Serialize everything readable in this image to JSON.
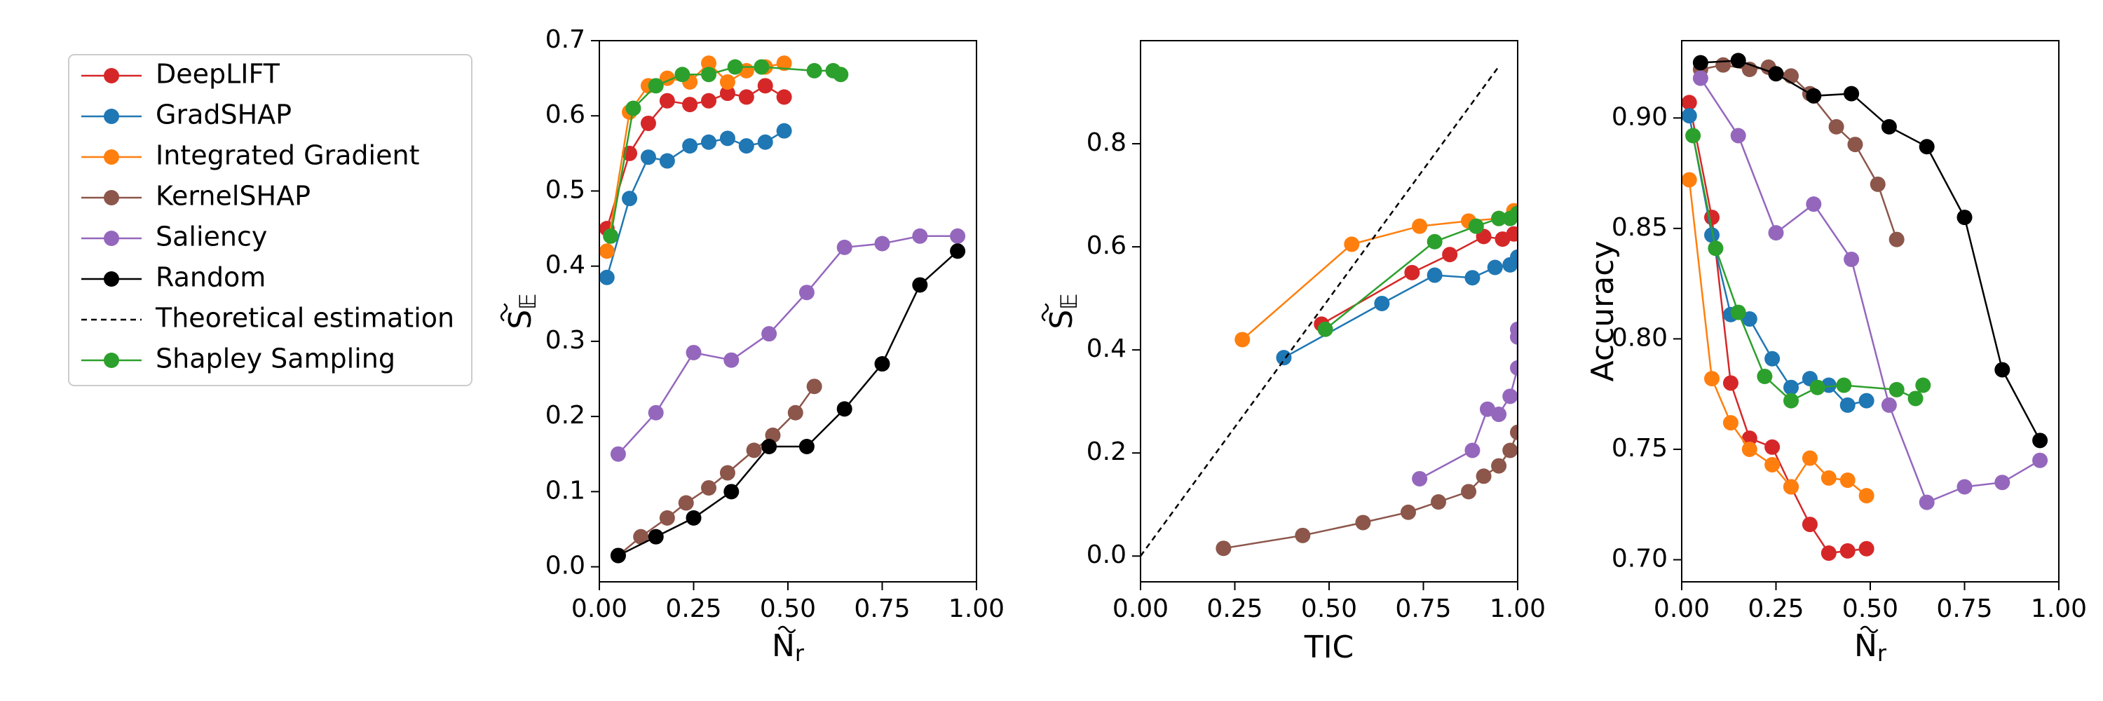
{
  "colors": {
    "DeepLIFT": "#d62728",
    "GradSHAP": "#1f77b4",
    "Integrated Gradient": "#ff7f0e",
    "KernelSHAP": "#8c564b",
    "Saliency": "#9467bd",
    "Random": "#000000",
    "Theoretical estimation": "#000000",
    "Shapley Sampling": "#2ca02c"
  },
  "legend": {
    "placement": "left-outside",
    "entries": [
      {
        "label": "DeepLIFT",
        "style": "line-marker"
      },
      {
        "label": "GradSHAP",
        "style": "line-marker"
      },
      {
        "label": "Integrated Gradient",
        "style": "line-marker"
      },
      {
        "label": "KernelSHAP",
        "style": "line-marker"
      },
      {
        "label": "Saliency",
        "style": "line-marker"
      },
      {
        "label": "Random",
        "style": "line-marker"
      },
      {
        "label": "Theoretical estimation",
        "style": "dashed"
      },
      {
        "label": "Shapley Sampling",
        "style": "line-marker"
      }
    ]
  },
  "chart_data": [
    {
      "type": "line",
      "id": "p1",
      "title": "",
      "xlabel_main": "N",
      "xlabel_sub": "r",
      "ylabel_main": "S",
      "ylabel_sub": "𝔼",
      "xlim": [
        0.0,
        1.0
      ],
      "ylim": [
        -0.02,
        0.7
      ],
      "xticks": [
        0.0,
        0.25,
        0.5,
        0.75,
        1.0
      ],
      "xtick_labels": [
        "0.00",
        "0.25",
        "0.50",
        "0.75",
        "1.00"
      ],
      "yticks": [
        0.0,
        0.1,
        0.2,
        0.3,
        0.4,
        0.5,
        0.6,
        0.7
      ],
      "ytick_labels": [
        "0.0",
        "0.1",
        "0.2",
        "0.3",
        "0.4",
        "0.5",
        "0.6",
        "0.7"
      ],
      "series": [
        {
          "name": "DeepLIFT",
          "x": [
            0.02,
            0.08,
            0.13,
            0.18,
            0.24,
            0.29,
            0.34,
            0.39,
            0.44,
            0.49
          ],
          "y": [
            0.45,
            0.55,
            0.59,
            0.62,
            0.615,
            0.62,
            0.63,
            0.625,
            0.64,
            0.625
          ]
        },
        {
          "name": "GradSHAP",
          "x": [
            0.02,
            0.08,
            0.13,
            0.18,
            0.24,
            0.29,
            0.34,
            0.39,
            0.44,
            0.49
          ],
          "y": [
            0.385,
            0.49,
            0.545,
            0.54,
            0.56,
            0.565,
            0.57,
            0.56,
            0.565,
            0.58
          ]
        },
        {
          "name": "Integrated Gradient",
          "x": [
            0.02,
            0.08,
            0.13,
            0.18,
            0.24,
            0.29,
            0.34,
            0.39,
            0.44,
            0.49
          ],
          "y": [
            0.42,
            0.605,
            0.64,
            0.65,
            0.645,
            0.67,
            0.645,
            0.66,
            0.665,
            0.67
          ]
        },
        {
          "name": "KernelSHAP",
          "x": [
            0.05,
            0.11,
            0.18,
            0.23,
            0.29,
            0.34,
            0.41,
            0.46,
            0.52,
            0.57
          ],
          "y": [
            0.015,
            0.04,
            0.065,
            0.085,
            0.105,
            0.125,
            0.155,
            0.175,
            0.205,
            0.24
          ]
        },
        {
          "name": "Saliency",
          "x": [
            0.05,
            0.15,
            0.25,
            0.35,
            0.45,
            0.55,
            0.65,
            0.75,
            0.85,
            0.95
          ],
          "y": [
            0.15,
            0.205,
            0.285,
            0.275,
            0.31,
            0.365,
            0.425,
            0.43,
            0.44,
            0.44
          ]
        },
        {
          "name": "Random",
          "x": [
            0.05,
            0.15,
            0.25,
            0.35,
            0.45,
            0.55,
            0.65,
            0.75,
            0.85,
            0.95
          ],
          "y": [
            0.015,
            0.04,
            0.065,
            0.1,
            0.16,
            0.16,
            0.21,
            0.27,
            0.375,
            0.42
          ]
        },
        {
          "name": "Shapley Sampling",
          "x": [
            0.03,
            0.09,
            0.15,
            0.22,
            0.29,
            0.36,
            0.43,
            0.57,
            0.62,
            0.64
          ],
          "y": [
            0.44,
            0.61,
            0.64,
            0.655,
            0.655,
            0.665,
            0.665,
            0.66,
            0.66,
            0.655
          ]
        }
      ]
    },
    {
      "type": "line",
      "id": "p2",
      "title": "",
      "xlabel": "TIC",
      "ylabel_main": "S",
      "ylabel_sub": "𝔼",
      "xlim": [
        0.0,
        1.0
      ],
      "ylim": [
        -0.05,
        1.0
      ],
      "xticks": [
        0.0,
        0.25,
        0.5,
        0.75,
        1.0
      ],
      "xtick_labels": [
        "0.00",
        "0.25",
        "0.50",
        "0.75",
        "1.00"
      ],
      "yticks": [
        0.0,
        0.2,
        0.4,
        0.6,
        0.8
      ],
      "ytick_labels": [
        "0.0",
        "0.2",
        "0.4",
        "0.6",
        "0.8"
      ],
      "series": [
        {
          "name": "DeepLIFT",
          "x": [
            0.48,
            0.72,
            0.82,
            0.91,
            0.96,
            0.99
          ],
          "y": [
            0.45,
            0.55,
            0.585,
            0.62,
            0.615,
            0.625
          ]
        },
        {
          "name": "GradSHAP",
          "x": [
            0.38,
            0.64,
            0.78,
            0.88,
            0.94,
            0.98,
            1.0
          ],
          "y": [
            0.385,
            0.49,
            0.545,
            0.54,
            0.56,
            0.565,
            0.58
          ]
        },
        {
          "name": "Integrated Gradient",
          "x": [
            0.27,
            0.56,
            0.74,
            0.87,
            0.95,
            0.99
          ],
          "y": [
            0.42,
            0.605,
            0.64,
            0.65,
            0.655,
            0.67
          ]
        },
        {
          "name": "KernelSHAP",
          "x": [
            0.22,
            0.43,
            0.59,
            0.71,
            0.79,
            0.87,
            0.91,
            0.95,
            0.98,
            1.0
          ],
          "y": [
            0.015,
            0.04,
            0.065,
            0.085,
            0.105,
            0.125,
            0.155,
            0.175,
            0.205,
            0.24
          ]
        },
        {
          "name": "Saliency",
          "x": [
            0.74,
            0.88,
            0.92,
            0.95,
            0.98,
            1.0,
            1.0,
            1.0
          ],
          "y": [
            0.15,
            0.205,
            0.285,
            0.275,
            0.31,
            0.365,
            0.425,
            0.44
          ]
        },
        {
          "name": "Shapley Sampling",
          "x": [
            0.49,
            0.78,
            0.89,
            0.95,
            0.98,
            1.0
          ],
          "y": [
            0.44,
            0.61,
            0.64,
            0.655,
            0.655,
            0.665
          ]
        },
        {
          "name": "Theoretical estimation",
          "style": "dashed",
          "x": [
            0.0,
            0.95
          ],
          "y": [
            0.0,
            0.95
          ]
        }
      ]
    },
    {
      "type": "line",
      "id": "p3",
      "title": "",
      "xlabel_main": "N",
      "xlabel_sub": "r",
      "ylabel": "Accuracy",
      "xlim": [
        0.0,
        1.0
      ],
      "ylim": [
        0.69,
        0.935
      ],
      "xticks": [
        0.0,
        0.25,
        0.5,
        0.75,
        1.0
      ],
      "xtick_labels": [
        "0.00",
        "0.25",
        "0.50",
        "0.75",
        "1.00"
      ],
      "yticks": [
        0.7,
        0.75,
        0.8,
        0.85,
        0.9
      ],
      "ytick_labels": [
        "0.70",
        "0.75",
        "0.80",
        "0.85",
        "0.90"
      ],
      "series": [
        {
          "name": "DeepLIFT",
          "x": [
            0.02,
            0.08,
            0.13,
            0.18,
            0.24,
            0.29,
            0.34,
            0.39,
            0.44,
            0.49
          ],
          "y": [
            0.907,
            0.855,
            0.78,
            0.755,
            0.751,
            0.733,
            0.716,
            0.703,
            0.704,
            0.705
          ]
        },
        {
          "name": "GradSHAP",
          "x": [
            0.02,
            0.08,
            0.13,
            0.18,
            0.24,
            0.29,
            0.34,
            0.39,
            0.44,
            0.49
          ],
          "y": [
            0.901,
            0.847,
            0.811,
            0.809,
            0.791,
            0.778,
            0.782,
            0.779,
            0.77,
            0.772
          ]
        },
        {
          "name": "Integrated Gradient",
          "x": [
            0.02,
            0.08,
            0.13,
            0.18,
            0.24,
            0.29,
            0.34,
            0.39,
            0.44,
            0.49
          ],
          "y": [
            0.872,
            0.782,
            0.762,
            0.75,
            0.743,
            0.733,
            0.746,
            0.737,
            0.736,
            0.729
          ]
        },
        {
          "name": "KernelSHAP",
          "x": [
            0.05,
            0.11,
            0.18,
            0.23,
            0.29,
            0.34,
            0.41,
            0.46,
            0.52,
            0.57
          ],
          "y": [
            0.922,
            0.924,
            0.922,
            0.923,
            0.919,
            0.911,
            0.896,
            0.888,
            0.87,
            0.845
          ]
        },
        {
          "name": "Saliency",
          "x": [
            0.05,
            0.15,
            0.25,
            0.35,
            0.45,
            0.55,
            0.65,
            0.75,
            0.85,
            0.95
          ],
          "y": [
            0.918,
            0.892,
            0.848,
            0.861,
            0.836,
            0.77,
            0.726,
            0.733,
            0.735,
            0.745
          ]
        },
        {
          "name": "Random",
          "x": [
            0.05,
            0.15,
            0.25,
            0.35,
            0.45,
            0.55,
            0.65,
            0.75,
            0.85,
            0.95
          ],
          "y": [
            0.925,
            0.926,
            0.92,
            0.91,
            0.911,
            0.896,
            0.887,
            0.855,
            0.786,
            0.754
          ]
        },
        {
          "name": "Shapley Sampling",
          "x": [
            0.03,
            0.09,
            0.15,
            0.22,
            0.29,
            0.36,
            0.43,
            0.57,
            0.62,
            0.64
          ],
          "y": [
            0.892,
            0.841,
            0.812,
            0.783,
            0.772,
            0.778,
            0.779,
            0.777,
            0.773,
            0.779
          ]
        }
      ]
    }
  ]
}
